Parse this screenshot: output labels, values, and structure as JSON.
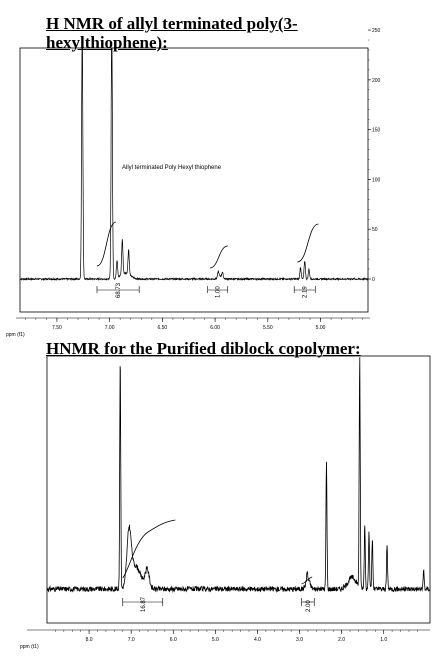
{
  "headings": {
    "top": "H NMR of allyl terminated poly(3-hexylthiophene):",
    "bottom": "HNMR for the Purified diblock copolymer:"
  },
  "chart_data": [
    {
      "type": "line",
      "title": "H NMR of allyl terminated poly(3-hexylthiophene):",
      "annotation": "Allyl terminated Poly Hexyl thiophene",
      "xlabel": "ppm (f1)",
      "xlim": [
        7.85,
        4.55
      ],
      "x_ticks": [
        "7.50",
        "7.00",
        "6.50",
        "6.00",
        "5.50",
        "5.00"
      ],
      "x_tick_values": [
        7.5,
        7.0,
        6.5,
        6.0,
        5.5,
        5.0
      ],
      "ylim": [
        -20,
        255
      ],
      "y_ticks": [
        "250",
        "200",
        "150",
        "100",
        "50",
        "0"
      ],
      "y_tick_values": [
        250,
        200,
        150,
        100,
        50,
        0
      ],
      "peaks": [
        {
          "x": 7.26,
          "y": 255
        },
        {
          "x": 6.98,
          "y": 255
        },
        {
          "x": 6.93,
          "y": 18
        },
        {
          "x": 6.88,
          "y": 35
        },
        {
          "x": 6.82,
          "y": 25
        },
        {
          "x": 5.97,
          "y": 6
        },
        {
          "x": 5.93,
          "y": 5
        },
        {
          "x": 5.19,
          "y": 12
        },
        {
          "x": 5.15,
          "y": 18
        },
        {
          "x": 5.11,
          "y": 10
        }
      ],
      "integrals": [
        {
          "label": "68.73",
          "from": 7.12,
          "to": 6.72
        },
        {
          "label": "1.00",
          "from": 6.07,
          "to": 5.88
        },
        {
          "label": "2.19",
          "from": 5.25,
          "to": 5.05
        }
      ]
    },
    {
      "type": "line",
      "title": "HNMR for the Purified diblock copolymer:",
      "xlabel": "ppm (t1)",
      "xlim": [
        9.0,
        -0.1
      ],
      "x_ticks": [
        "8.0",
        "7.0",
        "6.0",
        "5.0",
        "4.0",
        "3.0",
        "2.0",
        "1.0"
      ],
      "x_tick_values": [
        8.0,
        7.0,
        6.0,
        5.0,
        4.0,
        3.0,
        2.0,
        1.0
      ],
      "peaks": [
        {
          "x": 7.26,
          "y": 100
        },
        {
          "x": 7.05,
          "y": 22
        },
        {
          "x": 6.62,
          "y": 8
        },
        {
          "x": 2.82,
          "y": 4
        },
        {
          "x": 2.36,
          "y": 55
        },
        {
          "x": 1.57,
          "y": 100
        },
        {
          "x": 1.45,
          "y": 28
        },
        {
          "x": 1.35,
          "y": 26
        },
        {
          "x": 1.27,
          "y": 22
        },
        {
          "x": 0.92,
          "y": 19
        },
        {
          "x": 0.05,
          "y": 8
        }
      ],
      "integrals": [
        {
          "label": "16.87",
          "from": 7.2,
          "to": 6.25
        },
        {
          "label": "2.00",
          "from": 2.95,
          "to": 2.65
        }
      ]
    }
  ]
}
